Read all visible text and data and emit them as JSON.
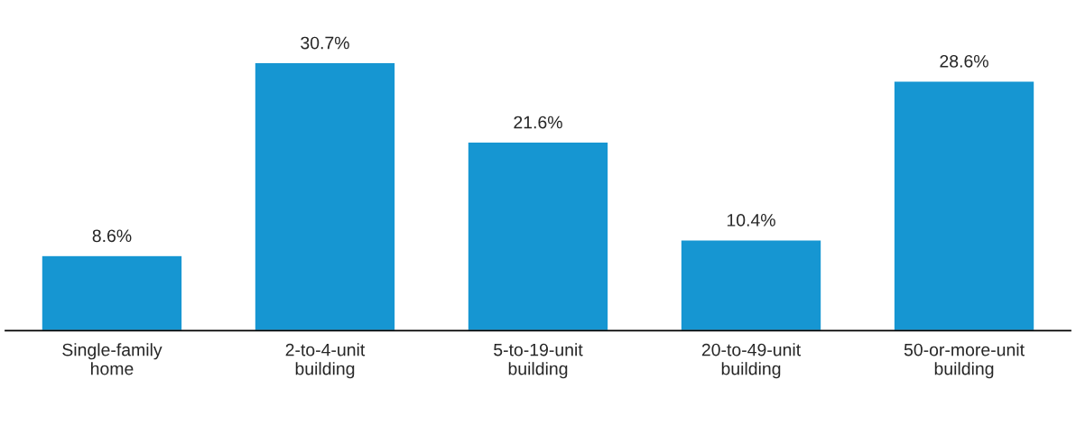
{
  "chart_data": {
    "type": "bar",
    "categories": [
      "Single-family\nhome",
      "2-to-4-unit\nbuilding",
      "5-to-19-unit\nbuilding",
      "20-to-49-unit\nbuilding",
      "50-or-more-unit\nbuilding"
    ],
    "values": [
      8.6,
      30.7,
      21.6,
      10.4,
      28.6
    ],
    "value_labels": [
      "8.6%",
      "30.7%",
      "21.6%",
      "10.4%",
      "28.6%"
    ],
    "color": "#1696d2"
  }
}
